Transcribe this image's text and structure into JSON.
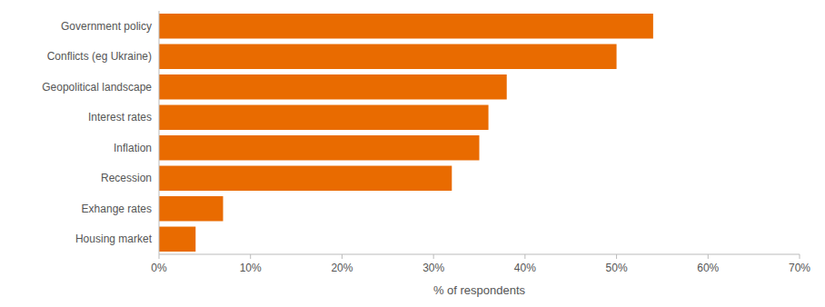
{
  "chart_data": {
    "type": "bar",
    "orientation": "horizontal",
    "categories": [
      "Housing market",
      "Exhange rates",
      "Recession",
      "Inflation",
      "Interest rates",
      "Geopolitical landscape",
      "Conflicts (eg Ukraine)",
      "Government policy"
    ],
    "values": [
      4,
      7,
      32,
      35,
      36,
      38,
      50,
      54
    ],
    "color": "#e96b00",
    "x_label": "% of respondents",
    "xlim": [
      0,
      70
    ],
    "xticks": [
      {
        "value": 0,
        "label": "0%"
      },
      {
        "value": 10,
        "label": "10%"
      },
      {
        "value": 20,
        "label": "20%"
      },
      {
        "value": 30,
        "label": "30%"
      },
      {
        "value": 40,
        "label": "40%"
      },
      {
        "value": 50,
        "label": "50%"
      },
      {
        "value": 60,
        "label": "60%"
      },
      {
        "value": 70,
        "label": "70%"
      }
    ],
    "grid": false
  }
}
